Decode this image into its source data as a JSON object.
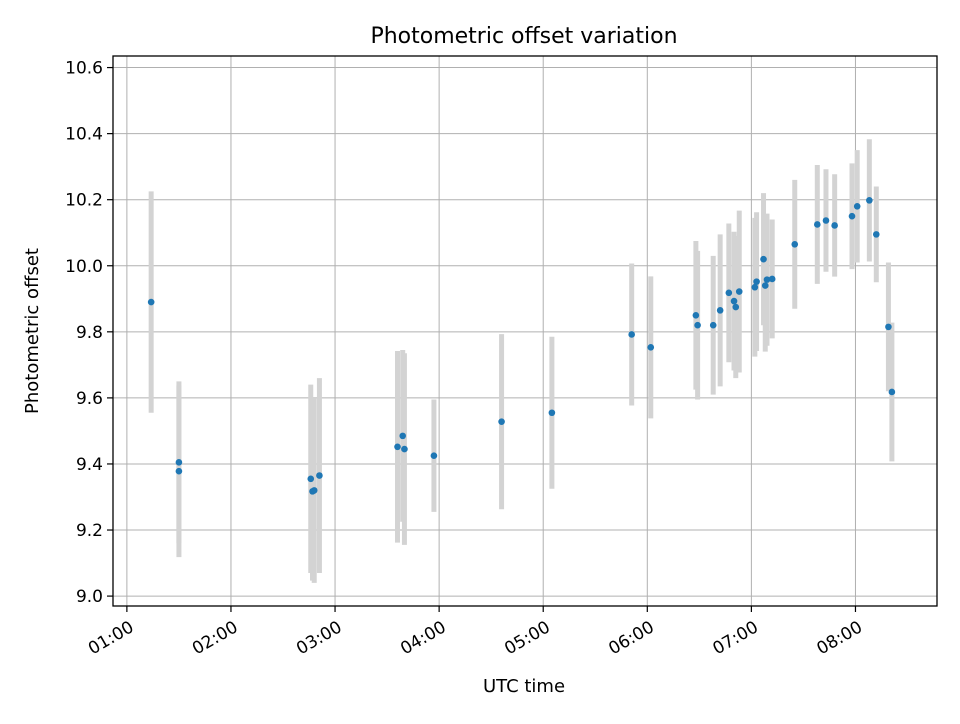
{
  "chart_data": {
    "type": "scatter",
    "title": "Photometric offset variation",
    "xlabel": "UTC time",
    "ylabel": "Photometric offset",
    "x_axis_type": "time",
    "xlim": [
      "00:52",
      "08:47"
    ],
    "ylim": [
      8.97,
      10.635
    ],
    "x_ticks": [
      "01:00",
      "02:00",
      "03:00",
      "04:00",
      "05:00",
      "06:00",
      "07:00",
      "08:00"
    ],
    "y_ticks": [
      "9.0",
      "9.2",
      "9.4",
      "9.6",
      "9.8",
      "10.0",
      "10.2",
      "10.4",
      "10.6"
    ],
    "grid": true,
    "legend": "none",
    "colors": {
      "marker": "#1f77b4",
      "errorbar": "#d3d3d3",
      "grid": "#b0b0b0"
    },
    "points": [
      {
        "x": "01:14",
        "y": 9.89,
        "yerr": 0.335
      },
      {
        "x": "01:30",
        "y": 9.405,
        "yerr": 0.245
      },
      {
        "x": "01:30",
        "y": 9.378,
        "yerr": 0.26
      },
      {
        "x": "02:46",
        "y": 9.355,
        "yerr": 0.285
      },
      {
        "x": "02:47",
        "y": 9.317,
        "yerr": 0.27
      },
      {
        "x": "02:48",
        "y": 9.32,
        "yerr": 0.28
      },
      {
        "x": "02:51",
        "y": 9.365,
        "yerr": 0.295
      },
      {
        "x": "03:36",
        "y": 9.452,
        "yerr": 0.29
      },
      {
        "x": "03:39",
        "y": 9.485,
        "yerr": 0.26
      },
      {
        "x": "03:40",
        "y": 9.445,
        "yerr": 0.29
      },
      {
        "x": "03:57",
        "y": 9.425,
        "yerr": 0.17
      },
      {
        "x": "04:36",
        "y": 9.528,
        "yerr": 0.265
      },
      {
        "x": "05:05",
        "y": 9.555,
        "yerr": 0.23
      },
      {
        "x": "05:51",
        "y": 9.792,
        "yerr": 0.215
      },
      {
        "x": "06:02",
        "y": 9.753,
        "yerr": 0.215
      },
      {
        "x": "06:28",
        "y": 9.85,
        "yerr": 0.225
      },
      {
        "x": "06:29",
        "y": 9.82,
        "yerr": 0.225
      },
      {
        "x": "06:38",
        "y": 9.82,
        "yerr": 0.21
      },
      {
        "x": "06:42",
        "y": 9.865,
        "yerr": 0.23
      },
      {
        "x": "06:47",
        "y": 9.918,
        "yerr": 0.21
      },
      {
        "x": "06:50",
        "y": 9.893,
        "yerr": 0.21
      },
      {
        "x": "06:51",
        "y": 9.875,
        "yerr": 0.215
      },
      {
        "x": "06:53",
        "y": 9.922,
        "yerr": 0.245
      },
      {
        "x": "07:02",
        "y": 9.935,
        "yerr": 0.21
      },
      {
        "x": "07:03",
        "y": 9.952,
        "yerr": 0.21
      },
      {
        "x": "07:07",
        "y": 10.02,
        "yerr": 0.2
      },
      {
        "x": "07:08",
        "y": 9.94,
        "yerr": 0.2
      },
      {
        "x": "07:09",
        "y": 9.958,
        "yerr": 0.2
      },
      {
        "x": "07:12",
        "y": 9.96,
        "yerr": 0.18
      },
      {
        "x": "07:25",
        "y": 10.065,
        "yerr": 0.195
      },
      {
        "x": "07:38",
        "y": 10.125,
        "yerr": 0.18
      },
      {
        "x": "07:43",
        "y": 10.137,
        "yerr": 0.155
      },
      {
        "x": "07:48",
        "y": 10.122,
        "yerr": 0.155
      },
      {
        "x": "07:58",
        "y": 10.15,
        "yerr": 0.16
      },
      {
        "x": "08:01",
        "y": 10.18,
        "yerr": 0.17
      },
      {
        "x": "08:08",
        "y": 10.198,
        "yerr": 0.185
      },
      {
        "x": "08:12",
        "y": 10.095,
        "yerr": 0.145
      },
      {
        "x": "08:19",
        "y": 9.815,
        "yerr": 0.195
      },
      {
        "x": "08:21",
        "y": 9.618,
        "yerr": 0.21
      }
    ]
  }
}
